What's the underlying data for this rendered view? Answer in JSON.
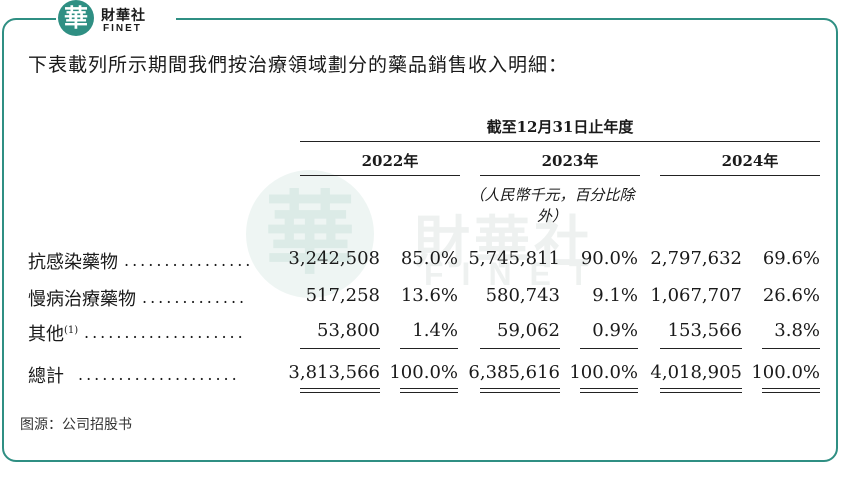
{
  "brand": {
    "badge": "華",
    "name_cn": "財華社",
    "name_en": "FINET"
  },
  "watermark": {
    "badge": "華",
    "name_cn": "財華社",
    "name_en": "FINET"
  },
  "intro": "下表載列所示期間我們按治療領域劃分的藥品銷售收入明細：",
  "table": {
    "period": "截至12月31日止年度",
    "years": [
      "2022年",
      "2023年",
      "2024年"
    ],
    "unit": "（人民幣千元，百分比除外）",
    "rows": [
      {
        "label": "抗感染藥物",
        "footnote": "",
        "leader": "................",
        "cells": [
          "3,242,508",
          "85.0%",
          "5,745,811",
          "90.0%",
          "2,797,632",
          "69.6%"
        ]
      },
      {
        "label": "慢病治療藥物",
        "footnote": "",
        "leader": ".............",
        "cells": [
          "517,258",
          "13.6%",
          "580,743",
          "9.1%",
          "1,067,707",
          "26.6%"
        ]
      },
      {
        "label": "其他",
        "footnote": "(1)",
        "leader": "....................",
        "cells": [
          "53,800",
          "1.4%",
          "59,062",
          "0.9%",
          "153,566",
          "3.8%"
        ]
      },
      {
        "label": "總計",
        "footnote": "",
        "leader": "....................",
        "cells": [
          "3,813,566",
          "100.0%",
          "6,385,616",
          "100.0%",
          "4,018,905",
          "100.0%"
        ]
      }
    ]
  },
  "source": "图源：公司招股书"
}
